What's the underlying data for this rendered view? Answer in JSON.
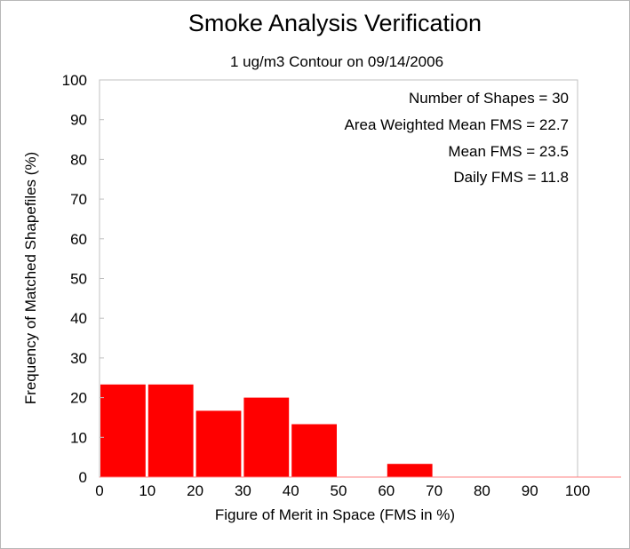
{
  "chart_data": {
    "type": "bar",
    "title": "Smoke Analysis Verification",
    "subtitle": "1 ug/m3 Contour on 09/14/2006",
    "xlabel": "Figure of Merit in Space (FMS in %)",
    "ylabel": "Frequency of Matched Shapefiles (%)",
    "xlim": [
      0,
      100
    ],
    "ylim": [
      0,
      100
    ],
    "x_ticks": [
      0,
      10,
      20,
      30,
      40,
      50,
      60,
      70,
      80,
      90,
      100
    ],
    "y_ticks": [
      0,
      10,
      20,
      30,
      40,
      50,
      60,
      70,
      80,
      90,
      100
    ],
    "bins": [
      {
        "from": 0,
        "to": 10,
        "value": 23.3
      },
      {
        "from": 10,
        "to": 20,
        "value": 23.3
      },
      {
        "from": 20,
        "to": 30,
        "value": 16.7
      },
      {
        "from": 30,
        "to": 40,
        "value": 20.0
      },
      {
        "from": 40,
        "to": 50,
        "value": 13.3
      },
      {
        "from": 50,
        "to": 60,
        "value": 0
      },
      {
        "from": 60,
        "to": 70,
        "value": 3.3
      },
      {
        "from": 70,
        "to": 80,
        "value": 0
      },
      {
        "from": 80,
        "to": 90,
        "value": 0
      },
      {
        "from": 90,
        "to": 100,
        "value": 0
      }
    ],
    "bar_color": "#ff0000",
    "grid": false,
    "annotations": [
      "Number of Shapes = 30",
      "Area Weighted Mean FMS = 22.7",
      "Mean FMS = 23.5",
      "Daily FMS = 11.8"
    ]
  }
}
